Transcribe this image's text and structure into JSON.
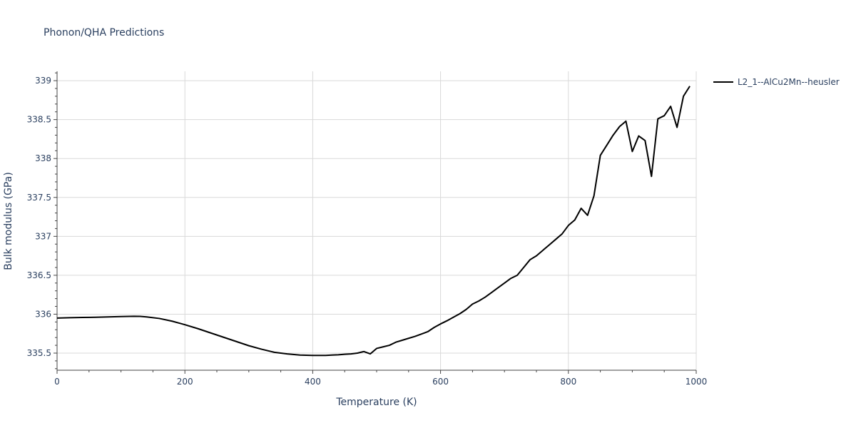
{
  "chart_data": {
    "type": "line",
    "title": "Phonon/QHA Predictions",
    "xlabel": "Temperature (K)",
    "ylabel": "Bulk modulus (GPa)",
    "xlim": [
      0,
      1000
    ],
    "ylim": [
      335.28,
      339.12
    ],
    "x_ticks": [
      0,
      200,
      400,
      600,
      800,
      1000
    ],
    "y_ticks": [
      335.5,
      336,
      336.5,
      337,
      337.5,
      338,
      338.5,
      339
    ],
    "x_tick_labels": [
      "0",
      "200",
      "400",
      "600",
      "800",
      "1000"
    ],
    "y_tick_labels": [
      "335.5",
      "336",
      "336.5",
      "337",
      "337.5",
      "338",
      "338.5",
      "339"
    ],
    "grid": true,
    "legend_position": "top-right",
    "series": [
      {
        "name": "L2_1--AlCu2Mn--heusler",
        "color": "#000000",
        "x": [
          0,
          20,
          40,
          60,
          80,
          100,
          120,
          130,
          140,
          160,
          180,
          200,
          220,
          240,
          260,
          280,
          300,
          320,
          340,
          360,
          380,
          400,
          420,
          430,
          440,
          450,
          460,
          470,
          480,
          490,
          500,
          510,
          520,
          530,
          540,
          550,
          560,
          570,
          580,
          590,
          600,
          610,
          620,
          630,
          640,
          650,
          660,
          670,
          680,
          690,
          700,
          710,
          720,
          730,
          740,
          750,
          760,
          770,
          780,
          790,
          800,
          810,
          820,
          830,
          840,
          850,
          860,
          870,
          880,
          890,
          900,
          910,
          920,
          930,
          940,
          950,
          960,
          970,
          980,
          990
        ],
        "y": [
          335.95,
          335.955,
          335.958,
          335.96,
          335.965,
          335.97,
          335.973,
          335.972,
          335.965,
          335.945,
          335.91,
          335.865,
          335.815,
          335.76,
          335.705,
          335.65,
          335.595,
          335.55,
          335.51,
          335.49,
          335.475,
          335.47,
          335.47,
          335.475,
          335.478,
          335.485,
          335.49,
          335.5,
          335.52,
          335.49,
          335.56,
          335.58,
          335.6,
          335.64,
          335.665,
          335.69,
          335.715,
          335.745,
          335.775,
          335.83,
          335.875,
          335.915,
          335.96,
          336.005,
          336.06,
          336.13,
          336.17,
          336.22,
          336.28,
          336.34,
          336.4,
          336.46,
          336.5,
          336.6,
          336.7,
          336.75,
          336.82,
          336.89,
          336.96,
          337.03,
          337.14,
          337.21,
          337.36,
          337.27,
          337.52,
          338.04,
          338.17,
          338.3,
          338.41,
          338.48,
          338.09,
          338.29,
          338.23,
          337.77,
          338.51,
          338.55,
          338.67,
          338.4,
          338.8,
          338.93
        ]
      }
    ]
  }
}
